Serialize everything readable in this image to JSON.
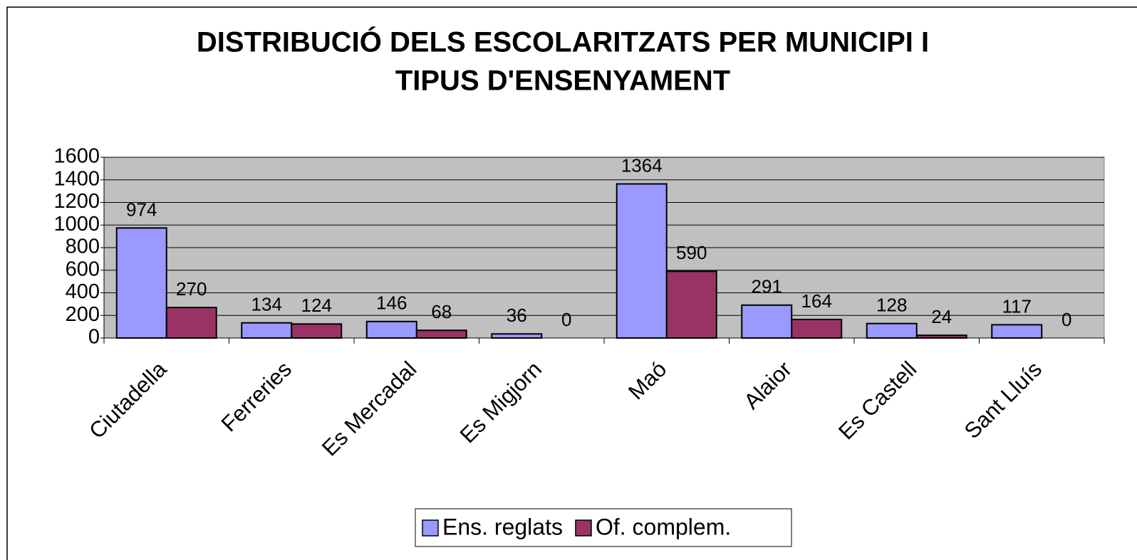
{
  "chart_data": {
    "type": "bar",
    "title": [
      "DISTRIBUCIÓ DELS ESCOLARITZATS PER MUNICIPI I",
      "TIPUS D'ENSENYAMENT"
    ],
    "categories": [
      "Ciutadella",
      "Ferreries",
      "Es Mercadal",
      "Es Migjorn",
      "Maó",
      "Alaior",
      "Es Castell",
      "Sant Lluís"
    ],
    "series": [
      {
        "name": "Ens. reglats",
        "color": "#9999ff",
        "values": [
          974,
          134,
          146,
          36,
          1364,
          291,
          128,
          117
        ]
      },
      {
        "name": "Of. complem.",
        "color": "#993366",
        "values": [
          270,
          124,
          68,
          0,
          590,
          164,
          24,
          0
        ]
      }
    ],
    "ylim": [
      0,
      1600
    ],
    "yticks": [
      0,
      200,
      400,
      600,
      800,
      1000,
      1200,
      1400,
      1600
    ],
    "grid": true,
    "legend": "bottom"
  }
}
